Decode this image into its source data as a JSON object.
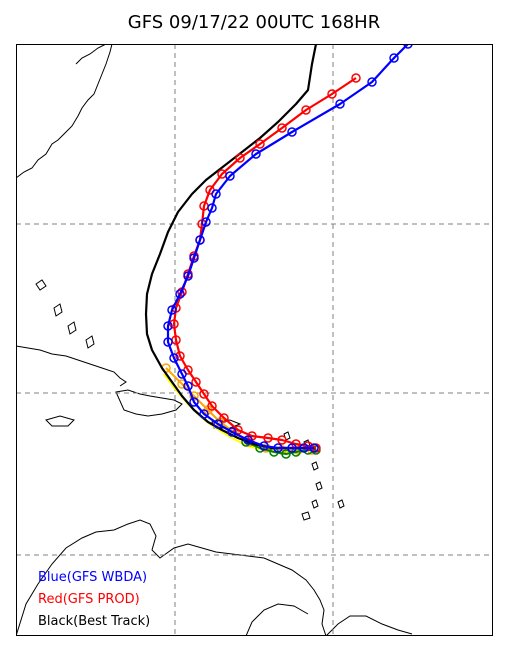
{
  "title": "GFS 09/17/22 00UTC 168HR",
  "legend": [
    {
      "label": "Blue(GFS WBDA)",
      "color": "#0000ff"
    },
    {
      "label": "Red(GFS PROD)",
      "color": "#ff0000"
    },
    {
      "label": "Black(Best Track)",
      "color": "#000000"
    }
  ],
  "colors": {
    "blue": "#0000ff",
    "red": "#ff0000",
    "black": "#000000",
    "orange": "#ffa500",
    "yellow": "#ffff00",
    "green": "#008000",
    "grid": "#808080"
  }
}
